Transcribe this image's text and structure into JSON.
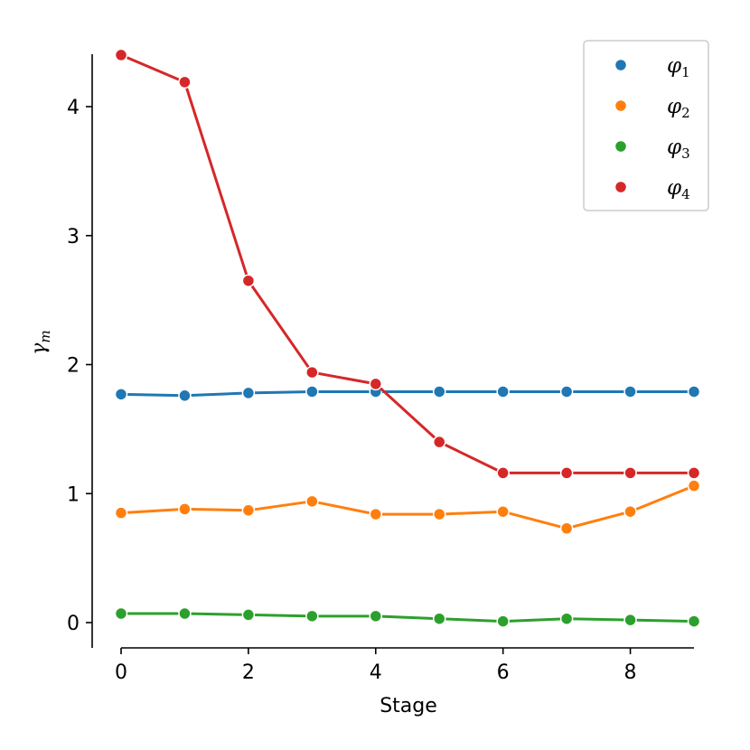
{
  "chart_data": {
    "type": "line",
    "title": "",
    "xlabel": "Stage",
    "ylabel": "γm",
    "ylabel_main": "γ",
    "ylabel_sub": "m",
    "xlim": [
      -0.2,
      9.0
    ],
    "ylim": [
      -0.2,
      4.42
    ],
    "x_ticks": [
      0,
      2,
      4,
      6,
      8
    ],
    "x_tick_labels": [
      "0",
      "2",
      "4",
      "6",
      "8"
    ],
    "y_ticks": [
      0,
      1,
      2,
      3,
      4
    ],
    "y_tick_labels": [
      "0",
      "1",
      "2",
      "3",
      "4"
    ],
    "grid": false,
    "legend_placement": "top-right",
    "x": [
      0,
      1,
      2,
      3,
      4,
      5,
      6,
      7,
      8,
      9
    ],
    "series": [
      {
        "name": "φ1",
        "name_main": "φ",
        "name_sub": "1",
        "color": "#1f77b4",
        "values": [
          1.77,
          1.76,
          1.78,
          1.79,
          1.79,
          1.79,
          1.79,
          1.79,
          1.79,
          1.79
        ]
      },
      {
        "name": "φ2",
        "name_main": "φ",
        "name_sub": "2",
        "color": "#ff7f0e",
        "values": [
          0.85,
          0.88,
          0.87,
          0.94,
          0.84,
          0.84,
          0.86,
          0.73,
          0.86,
          1.06
        ]
      },
      {
        "name": "φ3",
        "name_main": "φ",
        "name_sub": "3",
        "color": "#2ca02c",
        "values": [
          0.07,
          0.07,
          0.06,
          0.05,
          0.05,
          0.03,
          0.01,
          0.03,
          0.02,
          0.01
        ]
      },
      {
        "name": "φ4",
        "name_main": "φ",
        "name_sub": "4",
        "color": "#d62728",
        "values": [
          4.4,
          4.19,
          2.65,
          1.94,
          1.85,
          1.4,
          1.16,
          1.16,
          1.16,
          1.16
        ]
      }
    ]
  }
}
